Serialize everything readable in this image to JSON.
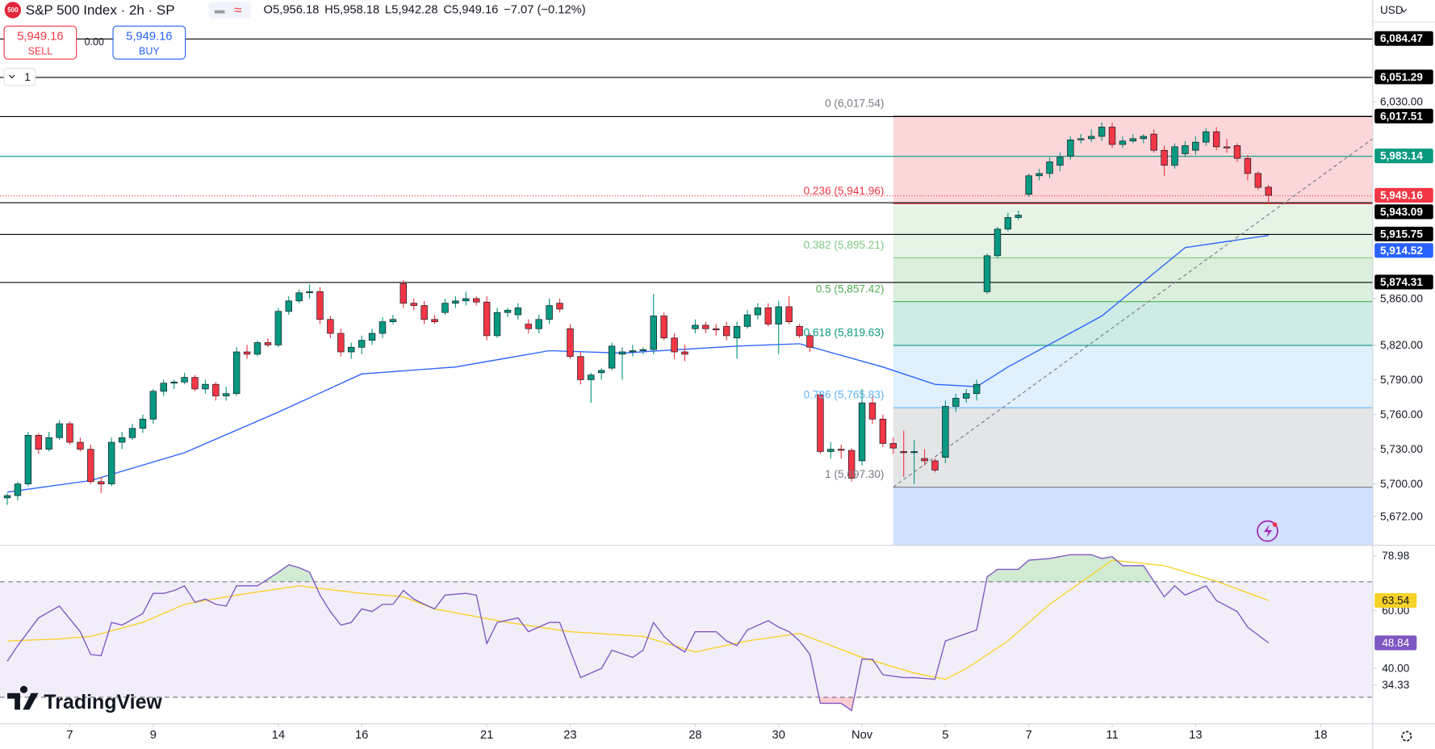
{
  "chart_data": {
    "type": "candlestick",
    "header": {
      "logo": "500",
      "symbol": "S&P 500 Index · 2h · SP",
      "ohlc": [
        {
          "key": "O",
          "value": "5,956.18"
        },
        {
          "key": "H",
          "value": "5,958.18"
        },
        {
          "key": "L",
          "value": "5,942.28"
        },
        {
          "key": "C",
          "value": "5,949.16"
        }
      ],
      "change": "−7.07 (−0.12%)"
    },
    "trade": {
      "sell_price": "5,949.16",
      "sell": "SELL",
      "spread": "0.00",
      "buy_price": "5,949.16",
      "buy": "BUY",
      "interval": "1"
    },
    "currency": "USD",
    "brand": "TradingView",
    "up_color": "#089981",
    "down_color": "#f23645",
    "xlim": [
      -0.7,
      131
    ],
    "ylim": [
      5647.5,
      6117.7
    ],
    "yticks": [
      {
        "value": 6030,
        "label": "6,030.00"
      },
      {
        "value": 5860,
        "label": "5,860.00"
      },
      {
        "value": 5820,
        "label": "5,820.00"
      },
      {
        "value": 5790,
        "label": "5,790.00"
      },
      {
        "value": 5760,
        "label": "5,760.00"
      },
      {
        "value": 5730,
        "label": "5,730.00"
      },
      {
        "value": 5700,
        "label": "5,700.00"
      },
      {
        "value": 5672,
        "label": "5,672.00"
      }
    ],
    "xticks": [
      {
        "value": 6,
        "label": "7"
      },
      {
        "value": 14,
        "label": "9"
      },
      {
        "value": 26,
        "label": "14"
      },
      {
        "value": 34,
        "label": "16"
      },
      {
        "value": 46,
        "label": "21"
      },
      {
        "value": 54,
        "label": "23"
      },
      {
        "value": 66,
        "label": "28"
      },
      {
        "value": 74,
        "label": "30"
      },
      {
        "value": 82,
        "label": "Nov"
      },
      {
        "value": 90,
        "label": "5"
      },
      {
        "value": 98,
        "label": "7"
      },
      {
        "value": 106,
        "label": "11"
      },
      {
        "value": 114,
        "label": "13"
      },
      {
        "value": 126,
        "label": "18"
      }
    ],
    "candles": [
      [
        5688,
        5692,
        5682,
        5690
      ],
      [
        5690,
        5702,
        5686,
        5700
      ],
      [
        5700,
        5745,
        5698,
        5742
      ],
      [
        5742,
        5744,
        5726,
        5730
      ],
      [
        5730,
        5745,
        5728,
        5740
      ],
      [
        5740,
        5755,
        5738,
        5752
      ],
      [
        5752,
        5754,
        5734,
        5736
      ],
      [
        5736,
        5740,
        5728,
        5730
      ],
      [
        5730,
        5734,
        5700,
        5702
      ],
      [
        5702,
        5706,
        5692,
        5700
      ],
      [
        5700,
        5740,
        5698,
        5736
      ],
      [
        5736,
        5745,
        5730,
        5740
      ],
      [
        5740,
        5752,
        5738,
        5748
      ],
      [
        5748,
        5760,
        5744,
        5756
      ],
      [
        5756,
        5782,
        5752,
        5780
      ],
      [
        5780,
        5790,
        5776,
        5787
      ],
      [
        5787,
        5790,
        5782,
        5788
      ],
      [
        5788,
        5796,
        5786,
        5792
      ],
      [
        5792,
        5794,
        5780,
        5782
      ],
      [
        5782,
        5790,
        5778,
        5786
      ],
      [
        5786,
        5788,
        5772,
        5776
      ],
      [
        5776,
        5784,
        5772,
        5778
      ],
      [
        5778,
        5818,
        5776,
        5814
      ],
      [
        5814,
        5820,
        5808,
        5812
      ],
      [
        5812,
        5824,
        5810,
        5822
      ],
      [
        5822,
        5826,
        5818,
        5820
      ],
      [
        5820,
        5852,
        5818,
        5849
      ],
      [
        5849,
        5862,
        5846,
        5858
      ],
      [
        5858,
        5868,
        5856,
        5865
      ],
      [
        5865,
        5872,
        5860,
        5866
      ],
      [
        5866,
        5870,
        5838,
        5842
      ],
      [
        5842,
        5845,
        5826,
        5830
      ],
      [
        5830,
        5834,
        5810,
        5814
      ],
      [
        5814,
        5822,
        5808,
        5818
      ],
      [
        5818,
        5828,
        5812,
        5824
      ],
      [
        5824,
        5834,
        5820,
        5830
      ],
      [
        5830,
        5844,
        5826,
        5840
      ],
      [
        5840,
        5846,
        5838,
        5842
      ],
      [
        5873,
        5876,
        5852,
        5856
      ],
      [
        5856,
        5860,
        5850,
        5854
      ],
      [
        5854,
        5858,
        5838,
        5842
      ],
      [
        5842,
        5846,
        5838,
        5840
      ],
      [
        5848,
        5860,
        5846,
        5856
      ],
      [
        5856,
        5862,
        5852,
        5858
      ],
      [
        5858,
        5866,
        5854,
        5860
      ],
      [
        5860,
        5862,
        5854,
        5857
      ],
      [
        5857,
        5862,
        5824,
        5828
      ],
      [
        5828,
        5852,
        5826,
        5848
      ],
      [
        5848,
        5852,
        5844,
        5850
      ],
      [
        5846,
        5856,
        5842,
        5852
      ],
      [
        5838,
        5842,
        5830,
        5834
      ],
      [
        5834,
        5846,
        5830,
        5842
      ],
      [
        5842,
        5860,
        5838,
        5854
      ],
      [
        5856,
        5860,
        5848,
        5851
      ],
      [
        5834,
        5838,
        5808,
        5810
      ],
      [
        5810,
        5814,
        5786,
        5790
      ],
      [
        5790,
        5796,
        5770,
        5794
      ],
      [
        5796,
        5800,
        5790,
        5798
      ],
      [
        5800,
        5822,
        5798,
        5819
      ],
      [
        5812,
        5818,
        5790,
        5814
      ],
      [
        5814,
        5820,
        5810,
        5815
      ],
      [
        5815,
        5818,
        5812,
        5816
      ],
      [
        5816,
        5864,
        5812,
        5845
      ],
      [
        5845,
        5848,
        5824,
        5826
      ],
      [
        5826,
        5830,
        5808,
        5814
      ],
      [
        5814,
        5820,
        5806,
        5812
      ],
      [
        5834,
        5842,
        5830,
        5837
      ],
      [
        5837,
        5840,
        5830,
        5834
      ],
      [
        5834,
        5838,
        5828,
        5833
      ],
      [
        5836,
        5840,
        5824,
        5828
      ],
      [
        5826,
        5840,
        5808,
        5836
      ],
      [
        5836,
        5850,
        5834,
        5846
      ],
      [
        5846,
        5856,
        5842,
        5852
      ],
      [
        5852,
        5856,
        5836,
        5838
      ],
      [
        5838,
        5858,
        5812,
        5853
      ],
      [
        5853,
        5862,
        5838,
        5840
      ],
      [
        5836,
        5838,
        5826,
        5828
      ],
      [
        5828,
        5830,
        5814,
        5818
      ],
      [
        5777,
        5780,
        5726,
        5728
      ],
      [
        5728,
        5736,
        5722,
        5730
      ],
      [
        5730,
        5734,
        5722,
        5729
      ],
      [
        5729,
        5731,
        5702,
        5705
      ],
      [
        5720,
        5782,
        5716,
        5770
      ],
      [
        5770,
        5776,
        5752,
        5756
      ],
      [
        5756,
        5760,
        5732,
        5735
      ],
      [
        5735,
        5740,
        5726,
        5731
      ],
      [
        5728,
        5746,
        5706,
        5727
      ],
      [
        5727,
        5738,
        5700,
        5728
      ],
      [
        5722,
        5730,
        5716,
        5720
      ],
      [
        5720,
        5722,
        5710,
        5712
      ],
      [
        5723,
        5772,
        5718,
        5767
      ],
      [
        5767,
        5778,
        5762,
        5774
      ],
      [
        5774,
        5782,
        5770,
        5778
      ],
      [
        5778,
        5790,
        5772,
        5786
      ],
      [
        5866,
        5899,
        5864,
        5897
      ],
      [
        5897,
        5922,
        5895,
        5920
      ],
      [
        5920,
        5934,
        5918,
        5930
      ],
      [
        5930,
        5936,
        5928,
        5932
      ],
      [
        5950,
        5968,
        5948,
        5966
      ],
      [
        5966,
        5972,
        5962,
        5968
      ],
      [
        5968,
        5982,
        5964,
        5978
      ],
      [
        5975,
        5986,
        5970,
        5982
      ],
      [
        5983,
        6000,
        5980,
        5997
      ],
      [
        5997,
        6002,
        5994,
        5998
      ],
      [
        5998,
        6006,
        5995,
        6000
      ],
      [
        6000,
        6012,
        5996,
        6008
      ],
      [
        6008,
        6012,
        5990,
        5993
      ],
      [
        5993,
        6000,
        5990,
        5996
      ],
      [
        5996,
        6002,
        5994,
        5998
      ],
      [
        5998,
        6002,
        5994,
        6000
      ],
      [
        6002,
        6006,
        5986,
        5988
      ],
      [
        5988,
        5992,
        5966,
        5975
      ],
      [
        5975,
        5994,
        5972,
        5991
      ],
      [
        5985,
        5996,
        5982,
        5992
      ],
      [
        5988,
        6000,
        5984,
        5995
      ],
      [
        5995,
        6007,
        5992,
        6004
      ],
      [
        6004,
        6008,
        5988,
        5991
      ],
      [
        5991,
        5998,
        5986,
        5990
      ],
      [
        5992,
        5994,
        5978,
        5981
      ],
      [
        5981,
        5984,
        5962,
        5968
      ],
      [
        5968,
        5970,
        5954,
        5956
      ],
      [
        5956.18,
        5958.18,
        5942.28,
        5949.16
      ]
    ],
    "ma": {
      "color": "#2962ff",
      "x": [
        0,
        8,
        17,
        26,
        34,
        43,
        52,
        59,
        70,
        76,
        84,
        89,
        93,
        96,
        105,
        113,
        121
      ],
      "values": [
        5693,
        5703,
        5727,
        5762,
        5795,
        5801,
        5815,
        5813,
        5819,
        5821,
        5801,
        5786,
        5784,
        5801,
        5845,
        5904,
        5914.52
      ]
    },
    "levels": [
      {
        "value": 6084.47,
        "label": "6,084.47",
        "color": "#000000"
      },
      {
        "value": 6051.29,
        "label": "6,051.29",
        "color": "#000000"
      },
      {
        "value": 6017.51,
        "label": "6,017.51",
        "color": "#000000"
      },
      {
        "value": 5983.14,
        "label": "5,983.14",
        "color": "#089981"
      },
      {
        "value": 5949.16,
        "label": "5,949.16",
        "color": "#f23645",
        "style": "dotted"
      },
      {
        "value": 5943.09,
        "label": "5,943.09",
        "color": "#000000"
      },
      {
        "value": 5915.75,
        "label": "5,915.75",
        "color": "#000000"
      },
      {
        "value": 5914.52,
        "label": "5,914.52",
        "color": "#2962ff",
        "line": false
      },
      {
        "value": 5874.31,
        "label": "5,874.31",
        "color": "#000000"
      }
    ],
    "fib": {
      "start": 85,
      "levels": [
        {
          "price": 6017.54,
          "label": "0 (6,017.54)",
          "color": "#787b86",
          "fill": "rgba(242,54,69,0.2)"
        },
        {
          "price": 5941.96,
          "label": "0.236 (5,941.96)",
          "color": "#f23645",
          "fill": "rgba(129,199,132,0.2)"
        },
        {
          "price": 5895.21,
          "label": "0.382 (5,895.21)",
          "color": "#81c784",
          "fill": "rgba(76,175,80,0.2)"
        },
        {
          "price": 5857.42,
          "label": "0.5 (5,857.42)",
          "color": "#4caf50",
          "fill": "rgba(8,153,129,0.2)"
        },
        {
          "price": 5819.63,
          "label": "0.618 (5,819.63)",
          "color": "#089981",
          "fill": "rgba(100,181,246,0.2)"
        },
        {
          "price": 5765.83,
          "label": "0.786 (5,765.83)",
          "color": "#64b5f6",
          "fill": "rgba(120,123,134,0.2)"
        },
        {
          "price": 5697.3,
          "label": "1 (5,697.30)",
          "color": "#787b86",
          "fill": "rgba(41,98,255,0.2)"
        }
      ]
    },
    "trendline": {
      "x": [
        85,
        131
      ],
      "values": [
        5697.3,
        5998
      ]
    },
    "rsi": {
      "ylim": [
        20.95,
        82.5
      ],
      "yticks": [
        78.98,
        {
          "value": 60,
          "label": "60.00"
        },
        {
          "value": 40,
          "label": "40.00"
        },
        34.33
      ],
      "bands": [
        70,
        30
      ],
      "line": {
        "color": "#7e57c2",
        "x": [
          0,
          1,
          3,
          5,
          7,
          8,
          9,
          10,
          11,
          13,
          14,
          15,
          16,
          17,
          18,
          19,
          20,
          21,
          22,
          24,
          26,
          27,
          28,
          29,
          30,
          31,
          32,
          33,
          34,
          35,
          36,
          37,
          38,
          39,
          40,
          41,
          42,
          44,
          45,
          46,
          47,
          49,
          50,
          52,
          53,
          54,
          55,
          57,
          58,
          60,
          61,
          62,
          63,
          64,
          65,
          66,
          68,
          69,
          70,
          71,
          73,
          74,
          75,
          76,
          77,
          78,
          80,
          81,
          82,
          83,
          84,
          86,
          87,
          89,
          90,
          93,
          94,
          95,
          97,
          98,
          100,
          102,
          104,
          105,
          106,
          107,
          109,
          111,
          112,
          113,
          115,
          116,
          118,
          119,
          121
        ],
        "values": [
          42.5,
          47.9,
          57.5,
          61.6,
          52.7,
          44.8,
          44.4,
          55.9,
          55,
          59,
          66,
          66,
          67,
          68.6,
          62.9,
          64,
          62.2,
          61.6,
          68.6,
          68.6,
          73.3,
          75.9,
          74.9,
          73.3,
          65.4,
          59.7,
          55,
          55.9,
          60.6,
          59.7,
          62.2,
          62.2,
          67,
          64,
          62.2,
          60.6,
          65.4,
          66,
          65.4,
          48.6,
          55.9,
          57.5,
          52.7,
          55.9,
          55.9,
          46.3,
          36.8,
          40,
          46.3,
          43.8,
          46.3,
          55.9,
          51.1,
          47.9,
          45.7,
          52.7,
          52.7,
          49.5,
          47.9,
          53.3,
          56.5,
          54.3,
          52.7,
          49.5,
          44.8,
          27.9,
          27.9,
          25.4,
          43.2,
          43.2,
          37.8,
          36.8,
          36.8,
          36.2,
          49.5,
          53.3,
          71.7,
          74.3,
          74.3,
          77.5,
          78.1,
          79.4,
          79.4,
          78.1,
          78.7,
          75.6,
          75.6,
          64.8,
          68.6,
          65.4,
          68.6,
          63.5,
          59.7,
          54.3,
          48.84
        ]
      },
      "ma": {
        "color": "#f7d228",
        "x": [
          0,
          5,
          8,
          13,
          17,
          22,
          28,
          34,
          38,
          41,
          48,
          54,
          61,
          66,
          71,
          76,
          82,
          87,
          90,
          92,
          96,
          100,
          106,
          111,
          116,
          121
        ],
        "values": [
          49.5,
          50.2,
          51.1,
          55.9,
          62.2,
          65.4,
          68.6,
          66,
          64.8,
          60.6,
          55.9,
          52.7,
          51.1,
          45.7,
          49.5,
          52.1,
          43.8,
          38.4,
          36.2,
          40,
          49.5,
          62.2,
          77.5,
          75.6,
          70.2,
          63.54
        ]
      }
    }
  }
}
